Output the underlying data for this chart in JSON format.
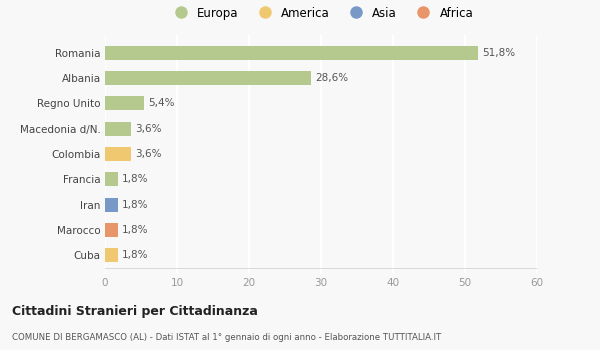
{
  "categories": [
    "Romania",
    "Albania",
    "Regno Unito",
    "Macedonia d/N.",
    "Colombia",
    "Francia",
    "Iran",
    "Marocco",
    "Cuba"
  ],
  "values": [
    51.8,
    28.6,
    5.4,
    3.6,
    3.6,
    1.8,
    1.8,
    1.8,
    1.8
  ],
  "labels": [
    "51,8%",
    "28,6%",
    "5,4%",
    "3,6%",
    "3,6%",
    "1,8%",
    "1,8%",
    "1,8%",
    "1,8%"
  ],
  "colors": [
    "#b5c98e",
    "#b5c98e",
    "#b5c98e",
    "#b5c98e",
    "#f0c870",
    "#b5c98e",
    "#7898c8",
    "#e8956a",
    "#f0c870"
  ],
  "legend_labels": [
    "Europa",
    "America",
    "Asia",
    "Africa"
  ],
  "legend_colors": [
    "#b5c98e",
    "#f0c870",
    "#7898c8",
    "#e8956a"
  ],
  "xlim": [
    0,
    60
  ],
  "xticks": [
    0,
    10,
    20,
    30,
    40,
    50,
    60
  ],
  "title": "Cittadini Stranieri per Cittadinanza",
  "subtitle": "COMUNE DI BERGAMASCO (AL) - Dati ISTAT al 1° gennaio di ogni anno - Elaborazione TUTTITALIA.IT",
  "bg_color": "#f8f8f8",
  "grid_color": "#ffffff",
  "bar_height": 0.55
}
